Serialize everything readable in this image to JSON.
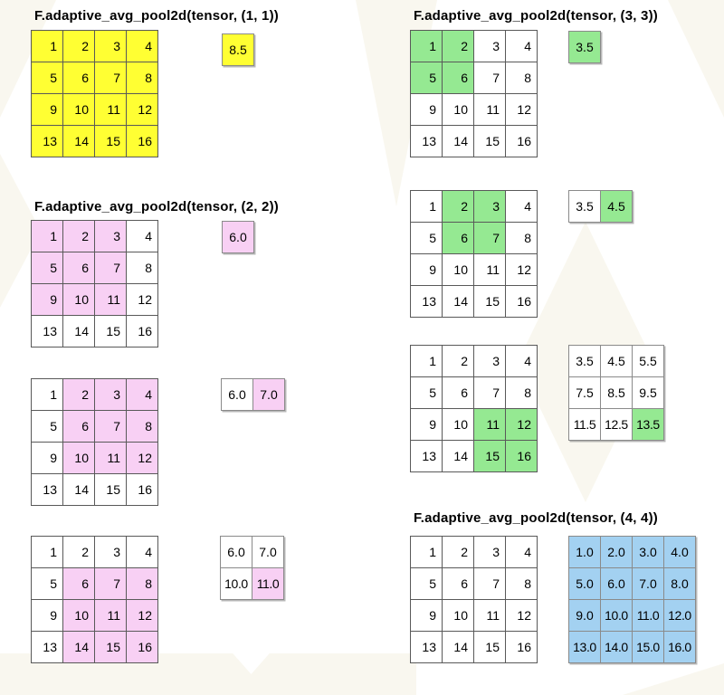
{
  "colors": {
    "yellow": "#ffff33",
    "green": "#95e992",
    "pink": "#f8d0f4",
    "blue": "#a3d1f1",
    "input_border": "#595959",
    "output_border": "#8a8a8a",
    "text": "#000000",
    "watermark": "#f4f0e2"
  },
  "sections": [
    {
      "id": "pool-1x1",
      "title": "F.adaptive_avg_pool2d(tensor, (1, 1))",
      "input": {
        "values": [
          [
            1,
            2,
            3,
            4
          ],
          [
            5,
            6,
            7,
            8
          ],
          [
            9,
            10,
            11,
            12
          ],
          [
            13,
            14,
            15,
            16
          ]
        ],
        "highlight": "yellow",
        "hl_cells": "all"
      },
      "output": {
        "values": [
          [
            "8.5"
          ]
        ],
        "highlight": "yellow",
        "hl_cells": "all"
      }
    },
    {
      "id": "pool-2x2-a",
      "title": "F.adaptive_avg_pool2d(tensor, (2, 2))",
      "input": {
        "values": [
          [
            1,
            2,
            3,
            4
          ],
          [
            5,
            6,
            7,
            8
          ],
          [
            9,
            10,
            11,
            12
          ],
          [
            13,
            14,
            15,
            16
          ]
        ],
        "highlight": "pink",
        "hl_cells": [
          [
            0,
            0
          ],
          [
            0,
            1
          ],
          [
            0,
            2
          ],
          [
            1,
            0
          ],
          [
            1,
            1
          ],
          [
            1,
            2
          ],
          [
            2,
            0
          ],
          [
            2,
            1
          ],
          [
            2,
            2
          ]
        ]
      },
      "output": {
        "values": [
          [
            "6.0"
          ]
        ],
        "highlight": "pink",
        "hl_cells": "all"
      }
    },
    {
      "id": "pool-2x2-b",
      "title": null,
      "input": {
        "values": [
          [
            1,
            2,
            3,
            4
          ],
          [
            5,
            6,
            7,
            8
          ],
          [
            9,
            10,
            11,
            12
          ],
          [
            13,
            14,
            15,
            16
          ]
        ],
        "highlight": "pink",
        "hl_cells": [
          [
            0,
            1
          ],
          [
            0,
            2
          ],
          [
            0,
            3
          ],
          [
            1,
            1
          ],
          [
            1,
            2
          ],
          [
            1,
            3
          ],
          [
            2,
            1
          ],
          [
            2,
            2
          ],
          [
            2,
            3
          ]
        ]
      },
      "output": {
        "values": [
          [
            "6.0",
            "7.0"
          ]
        ],
        "highlight": "pink",
        "hl_cells": [
          [
            0,
            1
          ]
        ]
      }
    },
    {
      "id": "pool-2x2-c",
      "title": null,
      "input": {
        "values": [
          [
            1,
            2,
            3,
            4
          ],
          [
            5,
            6,
            7,
            8
          ],
          [
            9,
            10,
            11,
            12
          ],
          [
            13,
            14,
            15,
            16
          ]
        ],
        "highlight": "pink",
        "hl_cells": [
          [
            1,
            1
          ],
          [
            1,
            2
          ],
          [
            1,
            3
          ],
          [
            2,
            1
          ],
          [
            2,
            2
          ],
          [
            2,
            3
          ],
          [
            3,
            1
          ],
          [
            3,
            2
          ],
          [
            3,
            3
          ]
        ]
      },
      "output": {
        "values": [
          [
            "6.0",
            "7.0"
          ],
          [
            "10.0",
            "11.0"
          ]
        ],
        "highlight": "pink",
        "hl_cells": [
          [
            1,
            1
          ]
        ]
      }
    },
    {
      "id": "pool-3x3-a",
      "title": "F.adaptive_avg_pool2d(tensor, (3, 3))",
      "input": {
        "values": [
          [
            1,
            2,
            3,
            4
          ],
          [
            5,
            6,
            7,
            8
          ],
          [
            9,
            10,
            11,
            12
          ],
          [
            13,
            14,
            15,
            16
          ]
        ],
        "highlight": "green",
        "hl_cells": [
          [
            0,
            0
          ],
          [
            0,
            1
          ],
          [
            1,
            0
          ],
          [
            1,
            1
          ]
        ]
      },
      "output": {
        "values": [
          [
            "3.5"
          ]
        ],
        "highlight": "green",
        "hl_cells": "all"
      }
    },
    {
      "id": "pool-3x3-b",
      "title": null,
      "input": {
        "values": [
          [
            1,
            2,
            3,
            4
          ],
          [
            5,
            6,
            7,
            8
          ],
          [
            9,
            10,
            11,
            12
          ],
          [
            13,
            14,
            15,
            16
          ]
        ],
        "highlight": "green",
        "hl_cells": [
          [
            0,
            1
          ],
          [
            0,
            2
          ],
          [
            1,
            1
          ],
          [
            1,
            2
          ]
        ]
      },
      "output": {
        "values": [
          [
            "3.5",
            "4.5"
          ]
        ],
        "highlight": "green",
        "hl_cells": [
          [
            0,
            1
          ]
        ]
      }
    },
    {
      "id": "pool-3x3-c",
      "title": null,
      "input": {
        "values": [
          [
            1,
            2,
            3,
            4
          ],
          [
            5,
            6,
            7,
            8
          ],
          [
            9,
            10,
            11,
            12
          ],
          [
            13,
            14,
            15,
            16
          ]
        ],
        "highlight": "green",
        "hl_cells": [
          [
            2,
            2
          ],
          [
            2,
            3
          ],
          [
            3,
            2
          ],
          [
            3,
            3
          ]
        ]
      },
      "output": {
        "values": [
          [
            "3.5",
            "4.5",
            "5.5"
          ],
          [
            "7.5",
            "8.5",
            "9.5"
          ],
          [
            "11.5",
            "12.5",
            "13.5"
          ]
        ],
        "highlight": "green",
        "hl_cells": [
          [
            2,
            2
          ]
        ]
      }
    },
    {
      "id": "pool-4x4",
      "title": "F.adaptive_avg_pool2d(tensor, (4, 4))",
      "input": {
        "values": [
          [
            1,
            2,
            3,
            4
          ],
          [
            5,
            6,
            7,
            8
          ],
          [
            9,
            10,
            11,
            12
          ],
          [
            13,
            14,
            15,
            16
          ]
        ],
        "highlight": null,
        "hl_cells": []
      },
      "output": {
        "values": [
          [
            "1.0",
            "2.0",
            "3.0",
            "4.0"
          ],
          [
            "5.0",
            "6.0",
            "7.0",
            "8.0"
          ],
          [
            "9.0",
            "10.0",
            "11.0",
            "12.0"
          ],
          [
            "13.0",
            "14.0",
            "15.0",
            "16.0"
          ]
        ],
        "highlight": "blue",
        "hl_cells": "all"
      }
    }
  ]
}
